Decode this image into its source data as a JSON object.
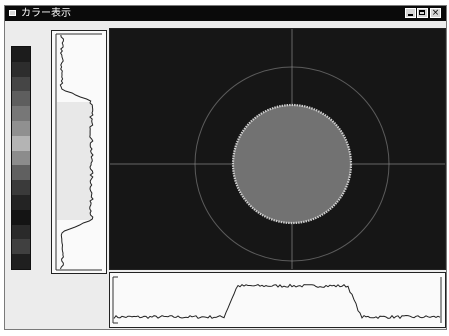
{
  "window": {
    "title": "カラー表示",
    "buttons": {
      "minimize": "_",
      "maximize": "□",
      "close": "×"
    }
  },
  "colors": {
    "titlebar": "#0a0a0a",
    "view_background": "#161616",
    "circle_fill": "#6f6f6f",
    "circle_edge": "#cfcfcf",
    "guide": "#8a8a8a"
  },
  "colorbar": {
    "segments": [
      "#1c1c1c",
      "#2d2d2d",
      "#454545",
      "#5e5e5e",
      "#777777",
      "#909090",
      "#b4b4b4",
      "#8c8c8c",
      "#606060",
      "#3a3a3a",
      "#232323",
      "#141414",
      "#2a2a2a",
      "#404040",
      "#1f1f1f"
    ]
  },
  "profile": {
    "plateau_start": 0.38,
    "plateau_end": 0.71,
    "low_level": 0.12,
    "high_level": 0.86
  }
}
